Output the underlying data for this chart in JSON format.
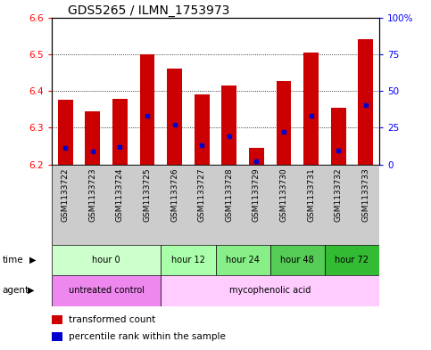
{
  "title": "GDS5265 / ILMN_1753973",
  "samples": [
    "GSM1133722",
    "GSM1133723",
    "GSM1133724",
    "GSM1133725",
    "GSM1133726",
    "GSM1133727",
    "GSM1133728",
    "GSM1133729",
    "GSM1133730",
    "GSM1133731",
    "GSM1133732",
    "GSM1133733"
  ],
  "bar_bottoms": [
    6.2,
    6.2,
    6.2,
    6.2,
    6.2,
    6.2,
    6.2,
    6.2,
    6.2,
    6.2,
    6.2,
    6.2
  ],
  "bar_tops": [
    6.375,
    6.345,
    6.378,
    6.5,
    6.46,
    6.39,
    6.415,
    6.245,
    6.428,
    6.505,
    6.355,
    6.54
  ],
  "percentile_values": [
    6.245,
    6.235,
    6.248,
    6.333,
    6.308,
    6.253,
    6.278,
    6.21,
    6.288,
    6.333,
    6.237,
    6.362
  ],
  "bar_color": "#cc0000",
  "percentile_color": "#0000cc",
  "ylim_left": [
    6.2,
    6.6
  ],
  "ylim_right": [
    0,
    100
  ],
  "yticks_left": [
    6.2,
    6.3,
    6.4,
    6.5,
    6.6
  ],
  "yticks_right": [
    0,
    25,
    50,
    75,
    100
  ],
  "ytick_labels_right": [
    "0",
    "25",
    "50",
    "75",
    "100%"
  ],
  "gridlines": [
    6.3,
    6.4,
    6.5
  ],
  "time_groups": [
    {
      "label": "hour 0",
      "start": 0,
      "end": 4,
      "color": "#ccffcc"
    },
    {
      "label": "hour 12",
      "start": 4,
      "end": 6,
      "color": "#aaffaa"
    },
    {
      "label": "hour 24",
      "start": 6,
      "end": 8,
      "color": "#88ee88"
    },
    {
      "label": "hour 48",
      "start": 8,
      "end": 10,
      "color": "#55cc55"
    },
    {
      "label": "hour 72",
      "start": 10,
      "end": 12,
      "color": "#33bb33"
    }
  ],
  "agent_groups": [
    {
      "label": "untreated control",
      "start": 0,
      "end": 4,
      "color": "#ee88ee"
    },
    {
      "label": "mycophenolic acid",
      "start": 4,
      "end": 12,
      "color": "#ffccff"
    }
  ],
  "legend_red": "transformed count",
  "legend_blue": "percentile rank within the sample",
  "background_label": "#cccccc",
  "bar_width": 0.55,
  "label_fontsize": 6.5,
  "title_fontsize": 10
}
